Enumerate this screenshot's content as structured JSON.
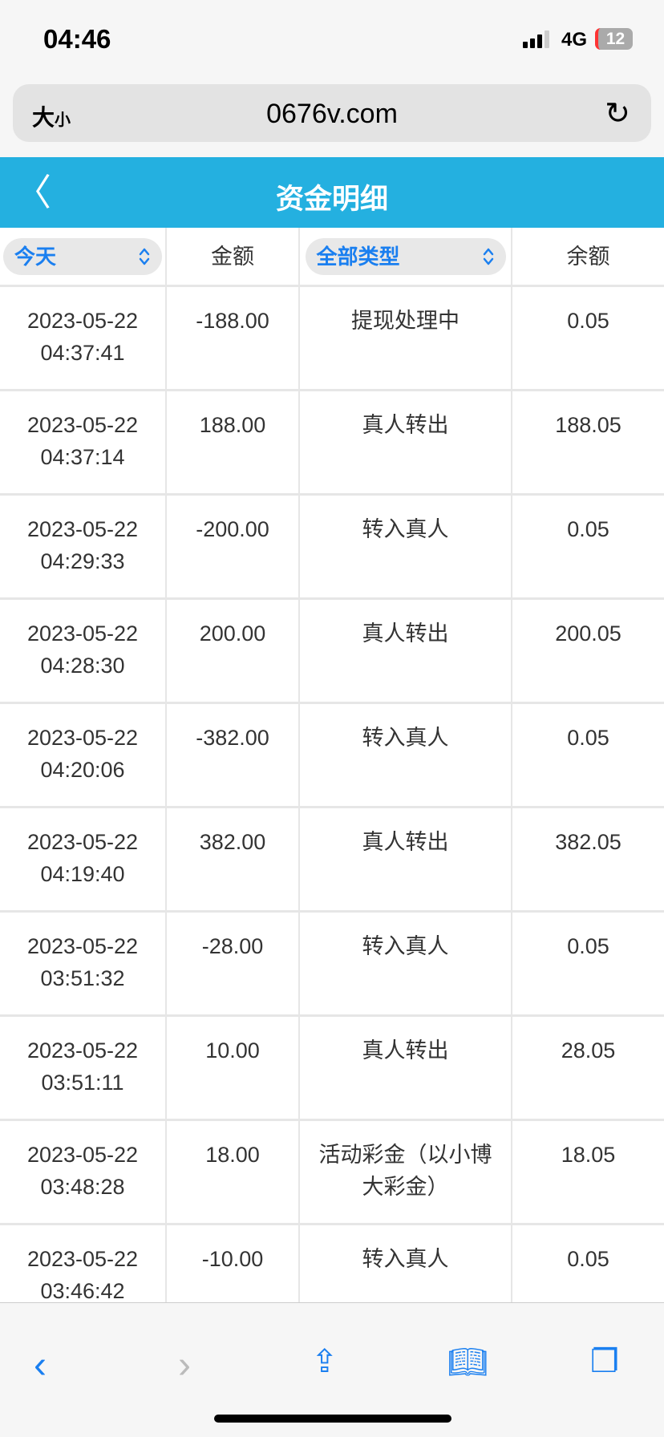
{
  "status": {
    "time": "04:46",
    "network": "4G",
    "battery": "12"
  },
  "browser": {
    "text_size": "大",
    "text_size_small": "小",
    "domain": "0676v.com"
  },
  "header": {
    "title": "资金明细"
  },
  "columns": {
    "date_filter": "今天",
    "amount": "金额",
    "type_filter": "全部类型",
    "balance": "余额"
  },
  "rows": [
    {
      "date": "2023-05-22",
      "time": "04:37:41",
      "amount": "-188.00",
      "type": "提现处理中",
      "balance": "0.05"
    },
    {
      "date": "2023-05-22",
      "time": "04:37:14",
      "amount": "188.00",
      "type": "真人转出",
      "balance": "188.05"
    },
    {
      "date": "2023-05-22",
      "time": "04:29:33",
      "amount": "-200.00",
      "type": "转入真人",
      "balance": "0.05"
    },
    {
      "date": "2023-05-22",
      "time": "04:28:30",
      "amount": "200.00",
      "type": "真人转出",
      "balance": "200.05"
    },
    {
      "date": "2023-05-22",
      "time": "04:20:06",
      "amount": "-382.00",
      "type": "转入真人",
      "balance": "0.05"
    },
    {
      "date": "2023-05-22",
      "time": "04:19:40",
      "amount": "382.00",
      "type": "真人转出",
      "balance": "382.05"
    },
    {
      "date": "2023-05-22",
      "time": "03:51:32",
      "amount": "-28.00",
      "type": "转入真人",
      "balance": "0.05"
    },
    {
      "date": "2023-05-22",
      "time": "03:51:11",
      "amount": "10.00",
      "type": "真人转出",
      "balance": "28.05"
    },
    {
      "date": "2023-05-22",
      "time": "03:48:28",
      "amount": "18.00",
      "type": "活动彩金（以小博大彩金）",
      "balance": "18.05"
    },
    {
      "date": "2023-05-22",
      "time": "03:46:42",
      "amount": "-10.00",
      "type": "转入真人",
      "balance": "0.05"
    }
  ],
  "colors": {
    "header": "#24b0e0",
    "accent": "#1a7ff0"
  }
}
